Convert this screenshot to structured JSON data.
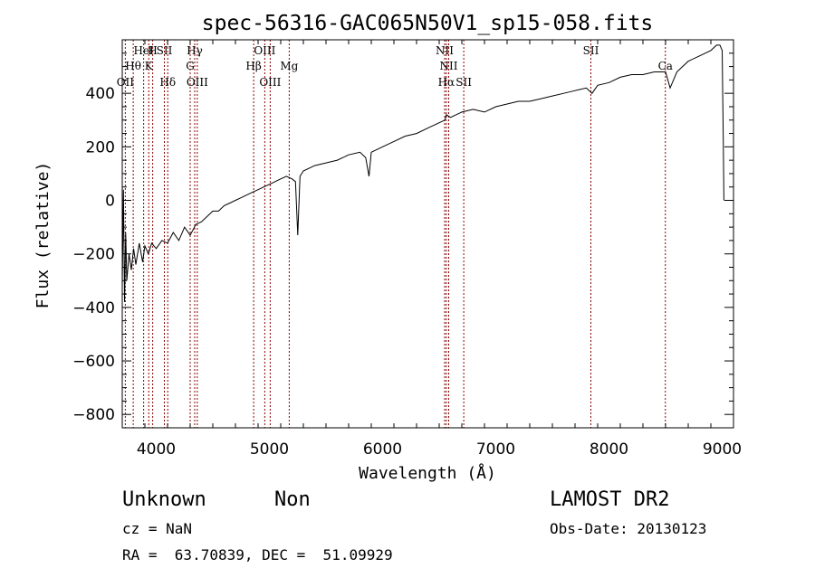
{
  "chart_data": {
    "type": "line",
    "title": "spec-56316-GAC065N50V1_sp15-058.fits",
    "xlabel": "Wavelength (Å)",
    "ylabel": "Flux (relative)",
    "xlim": [
      3700,
      9100
    ],
    "ylim": [
      -850,
      600
    ],
    "x_ticks": [
      4000,
      5000,
      6000,
      7000,
      8000,
      9000
    ],
    "y_ticks": [
      -800,
      -600,
      -400,
      -200,
      0,
      200,
      400
    ],
    "grid": false,
    "series": [
      {
        "x": [
          3700,
          3710,
          3720,
          3730,
          3740,
          3760,
          3780,
          3800,
          3820,
          3850,
          3880,
          3900,
          3930,
          3960,
          4000,
          4050,
          4100,
          4150,
          4200,
          4250,
          4300,
          4350,
          4400,
          4450,
          4500,
          4550,
          4600,
          4650,
          4700,
          4750,
          4800,
          4850,
          4900,
          4950,
          5000,
          5050,
          5100,
          5150,
          5200,
          5230,
          5250,
          5270,
          5300,
          5400,
          5500,
          5600,
          5700,
          5800,
          5850,
          5880,
          5900,
          6000,
          6100,
          6200,
          6300,
          6400,
          6500,
          6550,
          6563,
          6600,
          6650,
          6700,
          6800,
          6900,
          7000,
          7100,
          7200,
          7300,
          7400,
          7500,
          7600,
          7700,
          7800,
          7850,
          7900,
          8000,
          8100,
          8200,
          8300,
          8400,
          8500,
          8540,
          8600,
          8700,
          8800,
          8900,
          8950,
          8980,
          9000,
          9010,
          9015
        ],
        "y": [
          -320,
          40,
          -380,
          -120,
          -300,
          -200,
          -260,
          -180,
          -240,
          -160,
          -230,
          -170,
          -200,
          -160,
          -180,
          -150,
          -160,
          -120,
          -150,
          -100,
          -130,
          -90,
          -80,
          -60,
          -40,
          -40,
          -20,
          -10,
          0,
          10,
          20,
          30,
          40,
          50,
          60,
          70,
          80,
          90,
          80,
          70,
          -130,
          90,
          110,
          130,
          140,
          150,
          170,
          180,
          160,
          90,
          180,
          200,
          220,
          240,
          250,
          270,
          290,
          300,
          320,
          310,
          320,
          330,
          340,
          330,
          350,
          360,
          370,
          370,
          380,
          390,
          400,
          410,
          420,
          400,
          430,
          440,
          460,
          470,
          470,
          480,
          480,
          420,
          480,
          520,
          540,
          560,
          580,
          580,
          560,
          200,
          0
        ]
      }
    ],
    "lines": [
      {
        "label": "OII",
        "x": 3727,
        "row": 3
      },
      {
        "label": "Hθ",
        "x": 3797,
        "row": 2
      },
      {
        "label": "HeI",
        "x": 3889,
        "row": 1
      },
      {
        "label": "K",
        "x": 3934,
        "row": 2
      },
      {
        "label": "H",
        "x": 3969,
        "row": 1
      },
      {
        "label": "SII",
        "x": 4072,
        "row": 1
      },
      {
        "label": "Hδ",
        "x": 4102,
        "row": 3
      },
      {
        "label": "G",
        "x": 4300,
        "row": 2
      },
      {
        "label": "Hγ",
        "x": 4340,
        "row": 1
      },
      {
        "label": "OIII",
        "x": 4363,
        "row": 3
      },
      {
        "label": "Hβ",
        "x": 4861,
        "row": 2
      },
      {
        "label": "OIII",
        "x": 4959,
        "row": 1
      },
      {
        "label": "OIII",
        "x": 5007,
        "row": 3
      },
      {
        "label": "Mg",
        "x": 5175,
        "row": 2
      },
      {
        "label": "NII",
        "x": 6548,
        "row": 1
      },
      {
        "label": "Hα",
        "x": 6563,
        "row": 3
      },
      {
        "label": "NII",
        "x": 6584,
        "row": 2
      },
      {
        "label": "SII",
        "x": 6717,
        "row": 3
      },
      {
        "label": "SII",
        "x": 7840,
        "row": 1
      },
      {
        "label": "Ca",
        "x": 8498,
        "row": 2
      }
    ]
  },
  "footer": {
    "object_class": "Unknown",
    "subclass": "Non",
    "survey": "LAMOST DR2",
    "redshift": "cz = NaN",
    "obs_date": "Obs-Date: 20130123",
    "coords": "RA =  63.70839, DEC =  51.09929"
  },
  "colors": {
    "spectrum": "#000000",
    "marker_line": "#8b0000",
    "axis": "#000000",
    "background": "#ffffff"
  }
}
